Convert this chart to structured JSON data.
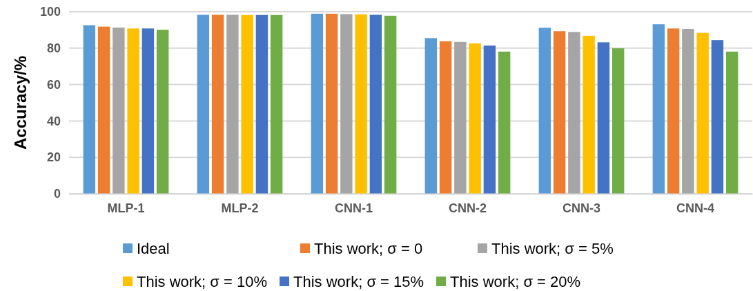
{
  "chart_data": {
    "type": "bar",
    "ylabel": "Accuracy/%",
    "categories": [
      "MLP-1",
      "MLP-2",
      "CNN-1",
      "CNN-2",
      "CNN-3",
      "CNN-4"
    ],
    "series": [
      {
        "name": "Ideal",
        "color": "#5b9bd5",
        "values": [
          92.6,
          98.3,
          98.9,
          85.5,
          91.2,
          93.1
        ]
      },
      {
        "name": "This work; σ = 0",
        "color": "#ed7d31",
        "values": [
          91.8,
          98.3,
          98.9,
          83.8,
          89.3,
          90.8
        ]
      },
      {
        "name": "This work; σ = 5%",
        "color": "#a5a5a5",
        "values": [
          91.3,
          98.3,
          98.7,
          83.4,
          88.9,
          90.5
        ]
      },
      {
        "name": "This work; σ = 10%",
        "color": "#ffc000",
        "values": [
          90.8,
          98.2,
          98.6,
          82.6,
          86.8,
          88.4
        ]
      },
      {
        "name": "This work; σ = 15%",
        "color": "#4472c4",
        "values": [
          90.8,
          98.2,
          98.3,
          81.4,
          83.2,
          84.4
        ]
      },
      {
        "name": "This work; σ = 20%",
        "color": "#70ad47",
        "values": [
          90.1,
          98.2,
          97.8,
          78.1,
          79.9,
          78.1
        ]
      }
    ],
    "ylim": [
      0,
      100
    ],
    "yticks": [
      0,
      20,
      40,
      60,
      80,
      100
    ],
    "grid": "y",
    "legend": "bottom"
  }
}
